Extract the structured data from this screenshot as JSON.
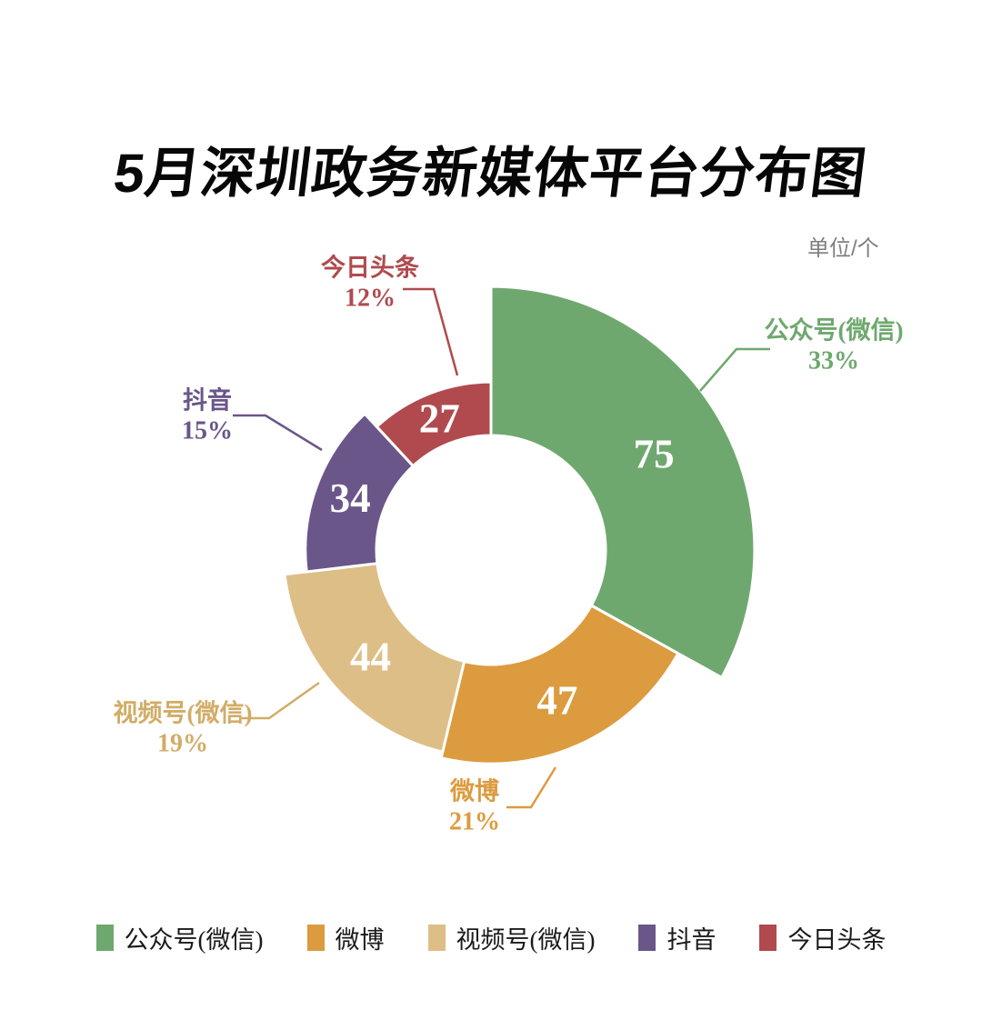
{
  "title": "5月深圳政务新媒体平台分布图",
  "unit_label": "单位/个",
  "styles": {
    "background": "#FFFFFF",
    "title_color": "#070707",
    "unit_color": "#7E7E7E",
    "legend_text_color": "#1A1A1A",
    "value_label_color": "#FFFFFF"
  },
  "chart_data": {
    "type": "pie",
    "variant": "nightingale-rose-donut",
    "title": "5月深圳政务新媒体平台分布图",
    "unit": "单位/个",
    "categories": [
      "公众号(微信)",
      "微博",
      "视频号(微信)",
      "抖音",
      "今日头条"
    ],
    "values": [
      75,
      47,
      44,
      34,
      27
    ],
    "percent_labels": [
      "33%",
      "21%",
      "19%",
      "15%",
      "12%"
    ],
    "colors": [
      "#6FA86F",
      "#DC9B3E",
      "#DDBE86",
      "#6A5689",
      "#B04A4E"
    ],
    "callout_label_colors": [
      "#6FA86F",
      "#DC9B3E",
      "#D2AC66",
      "#6A5689",
      "#B04A4E"
    ],
    "start": "top",
    "direction": "clockwise",
    "donut": true,
    "grid": false,
    "legend_position": "bottom",
    "legend": [
      "公众号(微信)",
      "微博",
      "视频号(微信)",
      "抖音",
      "今日头条"
    ]
  }
}
